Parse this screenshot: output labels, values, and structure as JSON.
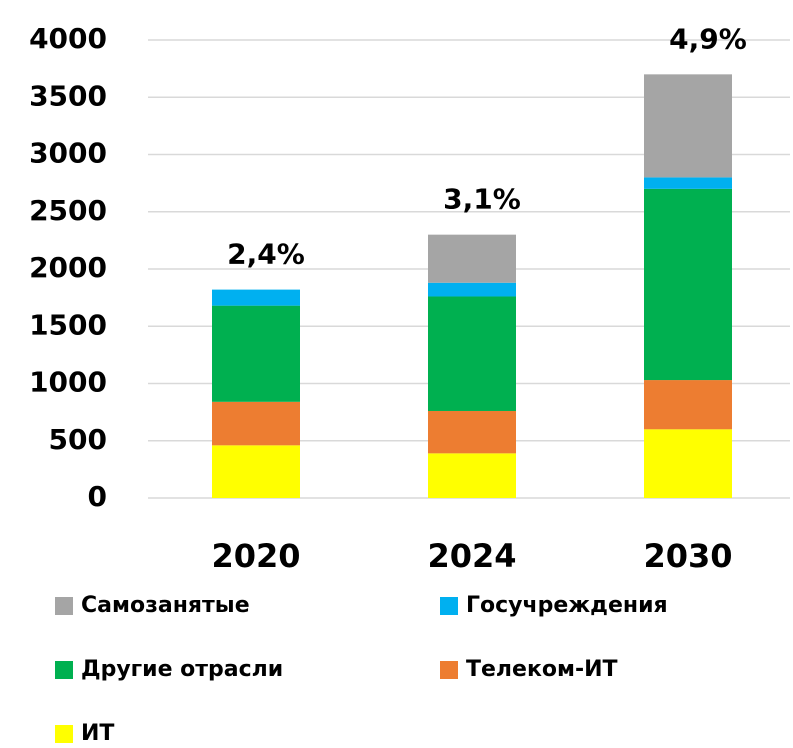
{
  "chart_data": {
    "type": "bar",
    "stacked": true,
    "categories": [
      "2020",
      "2024",
      "2030"
    ],
    "annotations": [
      "2,4%",
      "3,1%",
      "4,9%"
    ],
    "series": [
      {
        "name": "ИТ",
        "color": "#ffff00",
        "values": [
          460,
          390,
          600
        ]
      },
      {
        "name": "Телеком-ИТ",
        "color": "#ed7d31",
        "values": [
          380,
          370,
          430
        ]
      },
      {
        "name": "Другие отрасли",
        "color": "#00b050",
        "values": [
          840,
          1000,
          1670
        ]
      },
      {
        "name": "Госучреждения",
        "color": "#00b0f0",
        "values": [
          140,
          120,
          100
        ]
      },
      {
        "name": "Самозанятые",
        "color": "#a5a5a5",
        "values": [
          0,
          420,
          900
        ]
      }
    ],
    "ylim": [
      0,
      4000
    ],
    "yticks": [
      0,
      500,
      1000,
      1500,
      2000,
      2500,
      3000,
      3500,
      4000
    ],
    "grid": true
  }
}
